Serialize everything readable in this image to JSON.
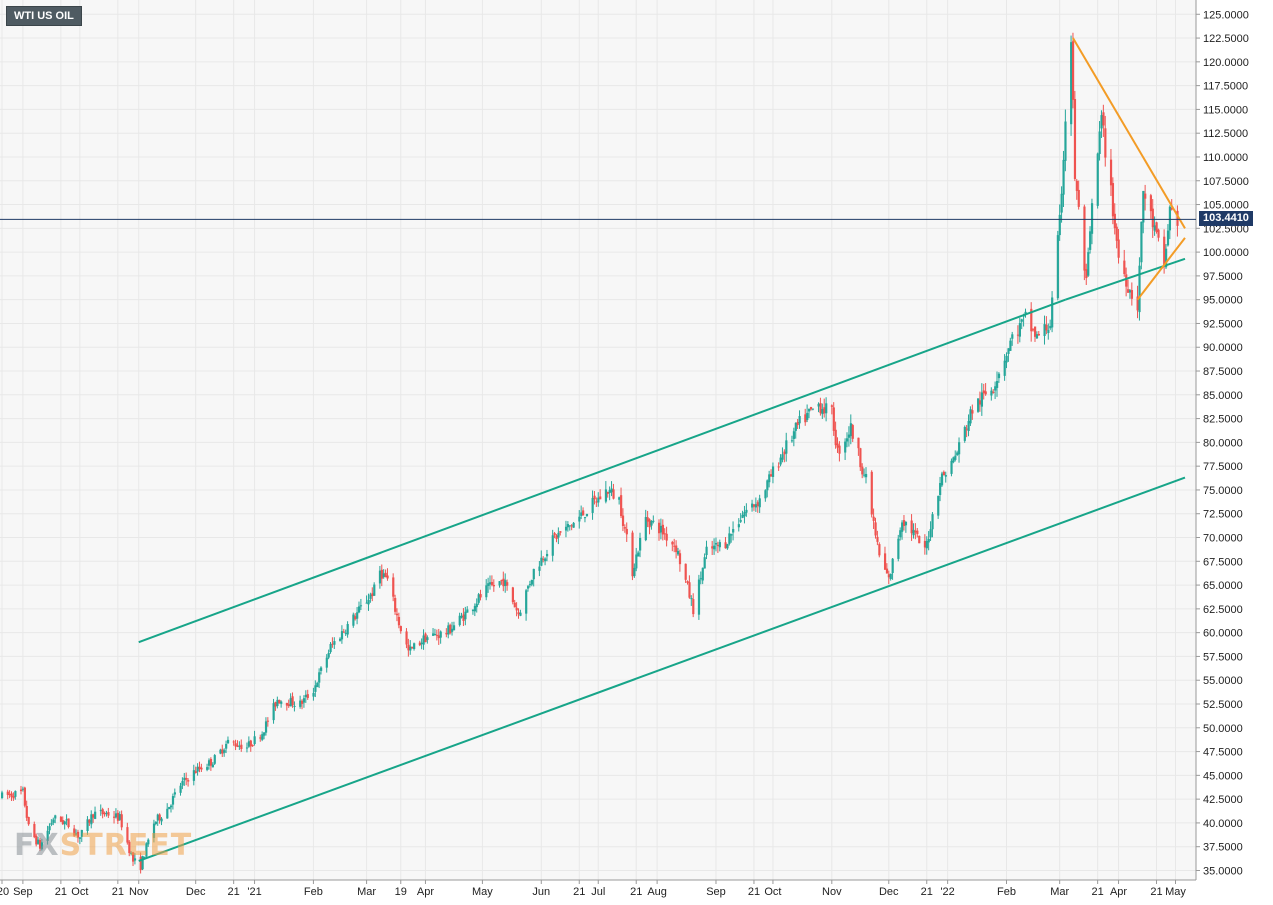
{
  "symbol": "WTI US OIL",
  "watermark": {
    "left": "FX",
    "right": "STREET"
  },
  "colors": {
    "up": "#26a69a",
    "down": "#ef5350",
    "channel": "#17a589",
    "wedge": "#f39c26",
    "price_line": "#1f3a66",
    "grid": "#e8e8e8",
    "background": "#f7f7f7"
  },
  "chart_data": {
    "type": "candlestick",
    "title": "WTI US OIL",
    "ylim": [
      34,
      126.5
    ],
    "grid": true,
    "last_price": 103.441,
    "last_price_label": "103.4410",
    "y_ticks": [
      {
        "value": 35,
        "label": "35.0000"
      },
      {
        "value": 37.5,
        "label": "37.5000"
      },
      {
        "value": 40,
        "label": "40.0000"
      },
      {
        "value": 42.5,
        "label": "42.5000"
      },
      {
        "value": 45,
        "label": "45.0000"
      },
      {
        "value": 47.5,
        "label": "47.5000"
      },
      {
        "value": 50,
        "label": "50.0000"
      },
      {
        "value": 52.5,
        "label": "52.5000"
      },
      {
        "value": 55,
        "label": "55.0000"
      },
      {
        "value": 57.5,
        "label": "57.5000"
      },
      {
        "value": 60,
        "label": "60.0000"
      },
      {
        "value": 62.5,
        "label": "62.5000"
      },
      {
        "value": 65,
        "label": "65.0000"
      },
      {
        "value": 67.5,
        "label": "67.5000"
      },
      {
        "value": 70,
        "label": "70.0000"
      },
      {
        "value": 72.5,
        "label": "72.5000"
      },
      {
        "value": 75,
        "label": "75.0000"
      },
      {
        "value": 77.5,
        "label": "77.5000"
      },
      {
        "value": 80,
        "label": "80.0000"
      },
      {
        "value": 82.5,
        "label": "82.5000"
      },
      {
        "value": 85,
        "label": "85.0000"
      },
      {
        "value": 87.5,
        "label": "87.5000"
      },
      {
        "value": 90,
        "label": "90.0000"
      },
      {
        "value": 92.5,
        "label": "92.5000"
      },
      {
        "value": 95,
        "label": "95.0000"
      },
      {
        "value": 97.5,
        "label": "97.5000"
      },
      {
        "value": 100,
        "label": "100.0000"
      },
      {
        "value": 102.5,
        "label": "102.5000"
      },
      {
        "value": 105,
        "label": "105.0000"
      },
      {
        "value": 107.5,
        "label": "107.5000"
      },
      {
        "value": 110,
        "label": "110.0000"
      },
      {
        "value": 112.5,
        "label": "112.5000"
      },
      {
        "value": 115,
        "label": "115.0000"
      },
      {
        "value": 117.5,
        "label": "117.5000"
      },
      {
        "value": 120,
        "label": "120.0000"
      },
      {
        "value": 122.5,
        "label": "122.5000"
      },
      {
        "value": 125,
        "label": "125.0000"
      }
    ],
    "x_ticks": [
      {
        "date": "2020-08-21",
        "label": "'20"
      },
      {
        "date": "2020-09-01",
        "label": "Sep"
      },
      {
        "date": "2020-09-21",
        "label": "21"
      },
      {
        "date": "2020-10-01",
        "label": "Oct"
      },
      {
        "date": "2020-10-21",
        "label": "21"
      },
      {
        "date": "2020-11-01",
        "label": "Nov"
      },
      {
        "date": "2020-12-01",
        "label": "Dec"
      },
      {
        "date": "2020-12-21",
        "label": "21"
      },
      {
        "date": "2021-01-01",
        "label": "'21"
      },
      {
        "date": "2021-02-01",
        "label": "Feb"
      },
      {
        "date": "2021-03-01",
        "label": "Mar"
      },
      {
        "date": "2021-03-19",
        "label": "19"
      },
      {
        "date": "2021-04-01",
        "label": "Apr"
      },
      {
        "date": "2021-05-01",
        "label": "May"
      },
      {
        "date": "2021-06-01",
        "label": "Jun"
      },
      {
        "date": "2021-06-21",
        "label": "21"
      },
      {
        "date": "2021-07-01",
        "label": "Jul"
      },
      {
        "date": "2021-07-21",
        "label": "21"
      },
      {
        "date": "2021-08-01",
        "label": "Aug"
      },
      {
        "date": "2021-09-01",
        "label": "Sep"
      },
      {
        "date": "2021-09-21",
        "label": "21"
      },
      {
        "date": "2021-10-01",
        "label": "Oct"
      },
      {
        "date": "2021-11-01",
        "label": "Nov"
      },
      {
        "date": "2021-12-01",
        "label": "Dec"
      },
      {
        "date": "2021-12-21",
        "label": "21"
      },
      {
        "date": "2022-01-01",
        "label": "'22"
      },
      {
        "date": "2022-02-01",
        "label": "Feb"
      },
      {
        "date": "2022-03-01",
        "label": "Mar"
      },
      {
        "date": "2022-03-21",
        "label": "21"
      },
      {
        "date": "2022-04-01",
        "label": "Apr"
      },
      {
        "date": "2022-04-21",
        "label": "21"
      },
      {
        "date": "2022-05-01",
        "label": "May"
      }
    ],
    "trendlines": [
      {
        "name": "channel-upper",
        "color": "channel",
        "points": [
          [
            "2020-11-01",
            59.0
          ],
          [
            "2022-03-04",
            95.0
          ]
        ]
      },
      {
        "name": "channel-lower",
        "color": "channel",
        "points": [
          [
            "2020-11-01",
            36.0
          ],
          [
            "2022-05-06",
            76.3
          ]
        ]
      },
      {
        "name": "channel-mid",
        "color": "channel",
        "points": [
          [
            "2022-03-04",
            95.0
          ],
          [
            "2022-05-06",
            99.3
          ]
        ]
      },
      {
        "name": "wedge-upper",
        "color": "wedge",
        "points": [
          [
            "2022-03-08",
            122.5
          ],
          [
            "2022-05-06",
            102.5
          ]
        ]
      },
      {
        "name": "wedge-lower",
        "color": "wedge",
        "points": [
          [
            "2022-04-11",
            95.0
          ],
          [
            "2022-05-06",
            101.5
          ]
        ]
      }
    ],
    "price_path": [
      [
        "2020-08-21",
        42.8
      ],
      [
        "2020-09-01",
        43.2
      ],
      [
        "2020-09-04",
        39.5
      ],
      [
        "2020-09-10",
        37.5
      ],
      [
        "2020-09-17",
        40.5
      ],
      [
        "2020-09-24",
        40.0
      ],
      [
        "2020-10-01",
        38.5
      ],
      [
        "2020-10-08",
        41.0
      ],
      [
        "2020-10-15",
        41.0
      ],
      [
        "2020-10-22",
        40.5
      ],
      [
        "2020-10-29",
        36.0
      ],
      [
        "2020-11-02",
        35.5
      ],
      [
        "2020-11-09",
        40.0
      ],
      [
        "2020-11-16",
        41.5
      ],
      [
        "2020-11-23",
        44.0
      ],
      [
        "2020-12-01",
        45.5
      ],
      [
        "2020-12-10",
        46.5
      ],
      [
        "2020-12-18",
        48.5
      ],
      [
        "2020-12-28",
        48.0
      ],
      [
        "2021-01-05",
        49.5
      ],
      [
        "2021-01-13",
        53.0
      ],
      [
        "2021-01-25",
        52.5
      ],
      [
        "2021-02-01",
        54.0
      ],
      [
        "2021-02-10",
        58.5
      ],
      [
        "2021-02-22",
        61.5
      ],
      [
        "2021-03-05",
        64.5
      ],
      [
        "2021-03-08",
        66.5
      ],
      [
        "2021-03-12",
        65.5
      ],
      [
        "2021-03-18",
        61.0
      ],
      [
        "2021-03-23",
        58.0
      ],
      [
        "2021-04-01",
        59.5
      ],
      [
        "2021-04-12",
        60.0
      ],
      [
        "2021-04-22",
        62.0
      ],
      [
        "2021-05-03",
        64.5
      ],
      [
        "2021-05-12",
        65.5
      ],
      [
        "2021-05-20",
        62.0
      ],
      [
        "2021-05-28",
        66.5
      ],
      [
        "2021-06-08",
        70.0
      ],
      [
        "2021-06-18",
        71.5
      ],
      [
        "2021-06-28",
        73.5
      ],
      [
        "2021-07-06",
        75.0
      ],
      [
        "2021-07-12",
        74.0
      ],
      [
        "2021-07-19",
        66.5
      ],
      [
        "2021-07-26",
        72.0
      ],
      [
        "2021-08-02",
        71.0
      ],
      [
        "2021-08-11",
        69.0
      ],
      [
        "2021-08-20",
        62.5
      ],
      [
        "2021-08-27",
        68.5
      ],
      [
        "2021-09-06",
        69.5
      ],
      [
        "2021-09-15",
        72.5
      ],
      [
        "2021-09-24",
        74.0
      ],
      [
        "2021-10-05",
        78.5
      ],
      [
        "2021-10-15",
        82.0
      ],
      [
        "2021-10-25",
        84.0
      ],
      [
        "2021-11-01",
        83.0
      ],
      [
        "2021-11-04",
        79.0
      ],
      [
        "2021-11-11",
        81.5
      ],
      [
        "2021-11-19",
        76.0
      ],
      [
        "2021-11-26",
        68.0
      ],
      [
        "2021-12-01",
        65.5
      ],
      [
        "2021-12-08",
        72.0
      ],
      [
        "2021-12-14",
        70.5
      ],
      [
        "2021-12-20",
        68.5
      ],
      [
        "2021-12-28",
        76.0
      ],
      [
        "2022-01-05",
        78.5
      ],
      [
        "2022-01-14",
        83.5
      ],
      [
        "2022-01-25",
        86.0
      ],
      [
        "2022-02-04",
        91.0
      ],
      [
        "2022-02-11",
        93.0
      ],
      [
        "2022-02-17",
        91.0
      ],
      [
        "2022-02-24",
        92.5
      ],
      [
        "2022-03-01",
        103.0
      ],
      [
        "2022-03-04",
        114.0
      ],
      [
        "2022-03-07",
        122.5
      ],
      [
        "2022-03-09",
        108.0
      ],
      [
        "2022-03-15",
        96.5
      ],
      [
        "2022-03-18",
        104.5
      ],
      [
        "2022-03-23",
        114.0
      ],
      [
        "2022-03-29",
        104.5
      ],
      [
        "2022-04-01",
        99.5
      ],
      [
        "2022-04-07",
        96.0
      ],
      [
        "2022-04-11",
        94.5
      ],
      [
        "2022-04-14",
        106.5
      ],
      [
        "2022-04-19",
        103.0
      ],
      [
        "2022-04-25",
        98.5
      ],
      [
        "2022-04-28",
        104.5
      ],
      [
        "2022-05-02",
        103.4
      ]
    ]
  }
}
